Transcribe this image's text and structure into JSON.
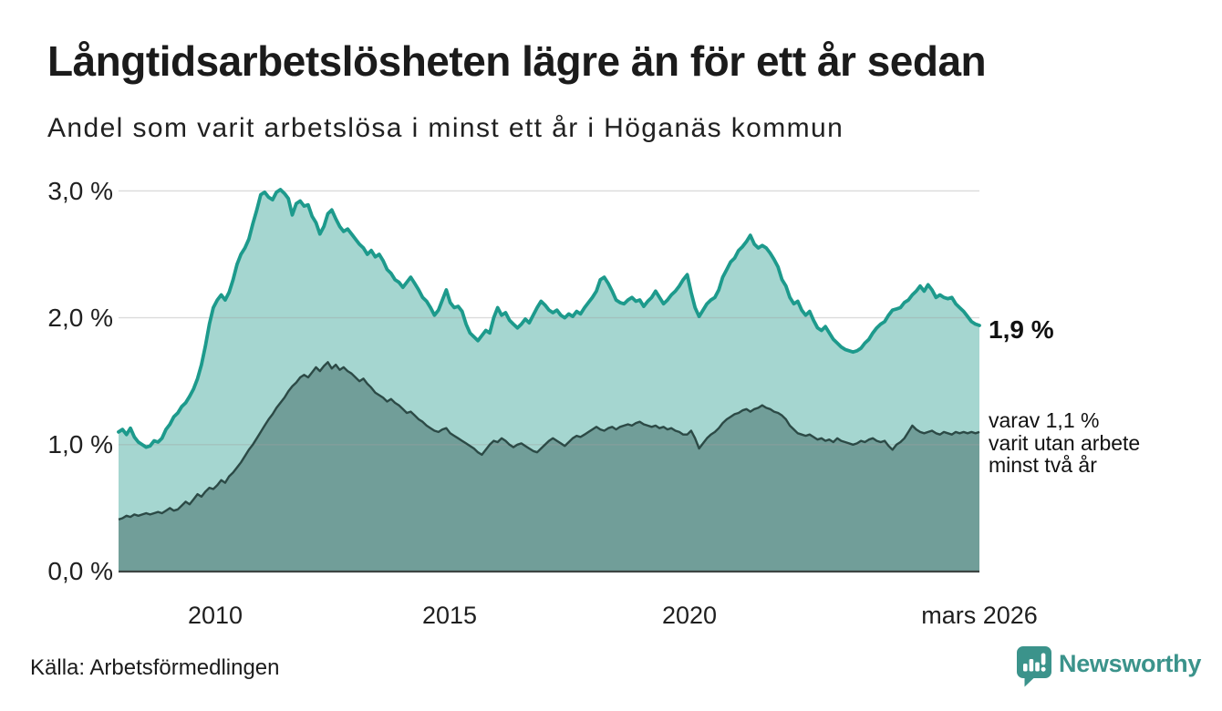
{
  "header": {
    "title": "Långtidsarbetslösheten lägre än för ett år sedan",
    "subtitle": "Andel som varit arbetslösa i minst ett år i Höganäs kommun"
  },
  "chart_data": {
    "type": "area",
    "unit": "%",
    "x_start": "2008-01",
    "x_end": "2026-03",
    "x_tick_labels": [
      "2010",
      "2015",
      "2020",
      "mars 2026"
    ],
    "y_tick_labels": [
      "3,0 %",
      "2,0 %",
      "1,0 %",
      "0,0 %"
    ],
    "ylim": [
      0,
      3.0
    ],
    "grid": "horizontal",
    "legend": "none",
    "series": [
      {
        "name": "Andel som varit arbetslösa minst ett år",
        "color": "#1d9a8c",
        "fill": "#a5d6d0",
        "latest": 1.9,
        "values": [
          1.1,
          1.12,
          1.08,
          1.13,
          1.06,
          1.02,
          1.0,
          0.98,
          0.99,
          1.03,
          1.02,
          1.05,
          1.12,
          1.16,
          1.22,
          1.25,
          1.3,
          1.33,
          1.38,
          1.44,
          1.52,
          1.63,
          1.78,
          1.95,
          2.08,
          2.14,
          2.18,
          2.14,
          2.2,
          2.3,
          2.42,
          2.5,
          2.55,
          2.62,
          2.74,
          2.85,
          2.97,
          2.99,
          2.95,
          2.93,
          2.99,
          3.01,
          2.98,
          2.94,
          2.81,
          2.9,
          2.92,
          2.88,
          2.89,
          2.8,
          2.75,
          2.66,
          2.72,
          2.82,
          2.85,
          2.78,
          2.72,
          2.68,
          2.7,
          2.66,
          2.62,
          2.58,
          2.55,
          2.5,
          2.53,
          2.48,
          2.5,
          2.45,
          2.38,
          2.35,
          2.3,
          2.28,
          2.24,
          2.28,
          2.32,
          2.27,
          2.22,
          2.16,
          2.13,
          2.08,
          2.02,
          2.06,
          2.14,
          2.22,
          2.12,
          2.08,
          2.09,
          2.05,
          1.95,
          1.88,
          1.85,
          1.82,
          1.86,
          1.9,
          1.88,
          2.0,
          2.08,
          2.02,
          2.04,
          1.98,
          1.95,
          1.92,
          1.95,
          1.99,
          1.96,
          2.02,
          2.08,
          2.13,
          2.1,
          2.06,
          2.04,
          2.06,
          2.02,
          2.0,
          2.03,
          2.01,
          2.05,
          2.03,
          2.08,
          2.12,
          2.16,
          2.21,
          2.3,
          2.32,
          2.27,
          2.21,
          2.14,
          2.12,
          2.11,
          2.14,
          2.16,
          2.13,
          2.14,
          2.09,
          2.13,
          2.16,
          2.21,
          2.16,
          2.11,
          2.14,
          2.18,
          2.21,
          2.25,
          2.3,
          2.34,
          2.2,
          2.08,
          2.01,
          2.06,
          2.11,
          2.14,
          2.16,
          2.22,
          2.32,
          2.38,
          2.44,
          2.47,
          2.53,
          2.56,
          2.6,
          2.65,
          2.58,
          2.55,
          2.57,
          2.55,
          2.51,
          2.46,
          2.4,
          2.3,
          2.25,
          2.16,
          2.11,
          2.13,
          2.06,
          2.02,
          2.05,
          1.98,
          1.92,
          1.9,
          1.93,
          1.88,
          1.83,
          1.8,
          1.77,
          1.75,
          1.74,
          1.73,
          1.74,
          1.76,
          1.8,
          1.83,
          1.88,
          1.92,
          1.95,
          1.97,
          2.02,
          2.06,
          2.07,
          2.08,
          2.12,
          2.14,
          2.18,
          2.21,
          2.25,
          2.21,
          2.26,
          2.22,
          2.16,
          2.18,
          2.16,
          2.15,
          2.16,
          2.11,
          2.08,
          2.05,
          2.01,
          1.97,
          1.95,
          1.94
        ]
      },
      {
        "name": "varav utan arbete minst två år",
        "color": "#2c4a46",
        "fill": "#719e99",
        "latest": 1.1,
        "values": [
          0.41,
          0.42,
          0.44,
          0.43,
          0.45,
          0.44,
          0.45,
          0.46,
          0.45,
          0.46,
          0.47,
          0.46,
          0.48,
          0.5,
          0.48,
          0.49,
          0.52,
          0.55,
          0.53,
          0.57,
          0.61,
          0.59,
          0.63,
          0.66,
          0.65,
          0.68,
          0.72,
          0.7,
          0.75,
          0.78,
          0.82,
          0.86,
          0.91,
          0.96,
          1.0,
          1.05,
          1.1,
          1.15,
          1.2,
          1.24,
          1.29,
          1.33,
          1.37,
          1.42,
          1.46,
          1.49,
          1.53,
          1.55,
          1.53,
          1.57,
          1.61,
          1.58,
          1.62,
          1.65,
          1.6,
          1.63,
          1.59,
          1.61,
          1.58,
          1.56,
          1.53,
          1.5,
          1.52,
          1.48,
          1.45,
          1.41,
          1.39,
          1.37,
          1.34,
          1.36,
          1.33,
          1.31,
          1.28,
          1.25,
          1.26,
          1.23,
          1.2,
          1.18,
          1.15,
          1.13,
          1.11,
          1.1,
          1.12,
          1.13,
          1.09,
          1.07,
          1.05,
          1.03,
          1.01,
          0.99,
          0.97,
          0.94,
          0.92,
          0.96,
          1.0,
          1.03,
          1.02,
          1.05,
          1.03,
          1.0,
          0.98,
          1.0,
          1.01,
          0.99,
          0.97,
          0.95,
          0.94,
          0.97,
          1.0,
          1.03,
          1.05,
          1.03,
          1.01,
          0.99,
          1.02,
          1.05,
          1.07,
          1.06,
          1.08,
          1.1,
          1.12,
          1.14,
          1.12,
          1.11,
          1.13,
          1.14,
          1.12,
          1.14,
          1.15,
          1.16,
          1.15,
          1.17,
          1.18,
          1.16,
          1.15,
          1.14,
          1.15,
          1.13,
          1.14,
          1.12,
          1.13,
          1.11,
          1.1,
          1.08,
          1.08,
          1.11,
          1.05,
          0.97,
          1.01,
          1.05,
          1.08,
          1.1,
          1.13,
          1.17,
          1.2,
          1.22,
          1.24,
          1.25,
          1.27,
          1.28,
          1.26,
          1.28,
          1.29,
          1.31,
          1.29,
          1.28,
          1.26,
          1.25,
          1.23,
          1.2,
          1.15,
          1.12,
          1.09,
          1.08,
          1.07,
          1.08,
          1.06,
          1.04,
          1.05,
          1.03,
          1.04,
          1.02,
          1.05,
          1.03,
          1.02,
          1.01,
          1.0,
          1.01,
          1.03,
          1.02,
          1.04,
          1.05,
          1.03,
          1.02,
          1.03,
          0.99,
          0.96,
          1.0,
          1.02,
          1.05,
          1.1,
          1.15,
          1.12,
          1.1,
          1.09,
          1.1,
          1.11,
          1.09,
          1.08,
          1.1,
          1.09,
          1.08,
          1.1,
          1.09,
          1.1,
          1.09,
          1.1,
          1.09,
          1.1
        ]
      }
    ],
    "annotations": {
      "latest_value": "1,9 %",
      "secondary_line1": "varav 1,1 %",
      "secondary_line2": "varit utan arbete",
      "secondary_line3": "minst två år"
    }
  },
  "footer": {
    "source": "Källa: Arbetsförmedlingen",
    "brand": "Newsworthy"
  },
  "colors": {
    "accent_teal": "#1d9a8c",
    "light_fill": "#a5d6d0",
    "dark_fill": "#719e99",
    "dark_line": "#2c4a46",
    "brand_teal": "#3b938b",
    "gridline": "#e2e2e2",
    "axis": "#3d4543"
  }
}
